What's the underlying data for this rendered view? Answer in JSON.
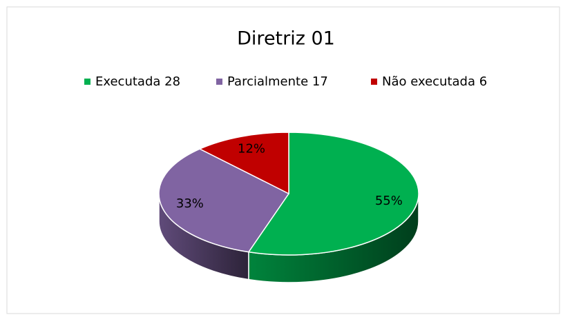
{
  "chart_data": {
    "type": "pie",
    "title": "Diretriz 01",
    "categories": [
      "Executada 28",
      "Parcialmente 17",
      "Não executada 6"
    ],
    "values": [
      55,
      33,
      12
    ],
    "value_labels": [
      "55%",
      "33%",
      "12%"
    ],
    "colors": [
      "#00b050",
      "#8064a2",
      "#c00000"
    ],
    "legend": "top"
  }
}
